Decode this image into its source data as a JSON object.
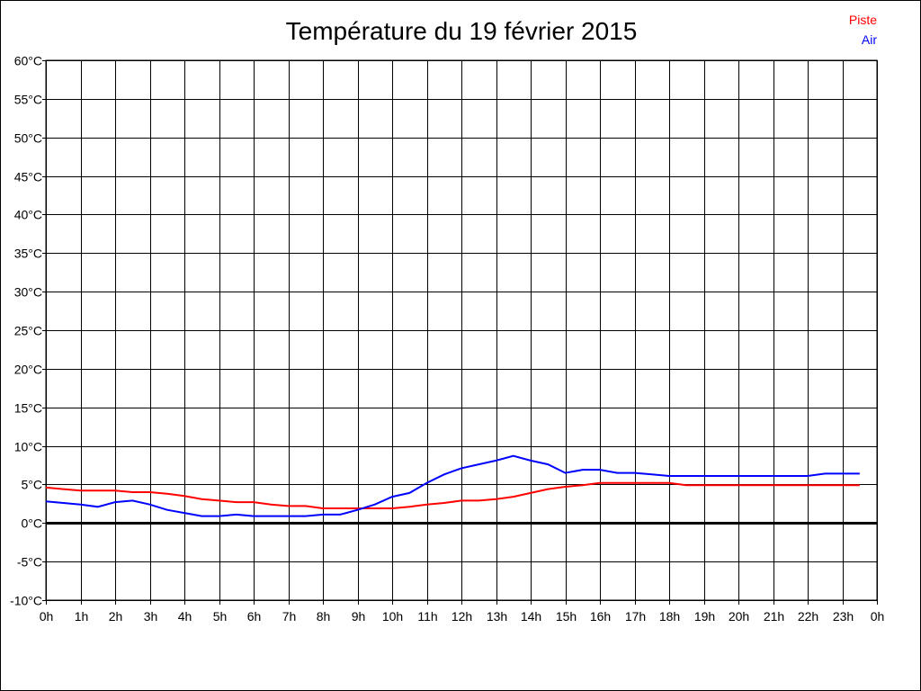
{
  "chart_data": {
    "type": "line",
    "title": "Température du 19 février 2015",
    "xlabel": "",
    "ylabel": "",
    "xlim": [
      0,
      24
    ],
    "ylim": [
      -10,
      60
    ],
    "grid": true,
    "legend_position": "top-right",
    "x_tick_labels": [
      "0h",
      "1h",
      "2h",
      "3h",
      "4h",
      "5h",
      "6h",
      "7h",
      "8h",
      "9h",
      "10h",
      "11h",
      "12h",
      "13h",
      "14h",
      "15h",
      "16h",
      "17h",
      "18h",
      "19h",
      "20h",
      "21h",
      "22h",
      "23h",
      "0h"
    ],
    "y_ticks": [
      -10,
      -5,
      0,
      5,
      10,
      15,
      20,
      25,
      30,
      35,
      40,
      45,
      50,
      55,
      60
    ],
    "y_tick_labels": [
      "-10°C",
      "-5°C",
      "0°C",
      "5°C",
      "10°C",
      "15°C",
      "20°C",
      "25°C",
      "30°C",
      "35°C",
      "40°C",
      "45°C",
      "50°C",
      "55°C",
      "60°C"
    ],
    "x": [
      0,
      0.5,
      1,
      1.5,
      2,
      2.5,
      3,
      3.5,
      4,
      4.5,
      5,
      5.5,
      6,
      6.5,
      7,
      7.5,
      8,
      8.5,
      9,
      9.5,
      10,
      10.5,
      11,
      11.5,
      12,
      12.5,
      13,
      13.5,
      14,
      14.5,
      15,
      15.5,
      16,
      16.5,
      17,
      17.5,
      18,
      18.5,
      19,
      19.5,
      20,
      20.5,
      21,
      21.5,
      22,
      22.5,
      23,
      23.5
    ],
    "series": [
      {
        "name": "Piste",
        "color": "#ff0000",
        "values": [
          4.6,
          4.4,
          4.2,
          4.2,
          4.2,
          4.0,
          4.0,
          3.8,
          3.5,
          3.1,
          2.9,
          2.7,
          2.7,
          2.4,
          2.2,
          2.2,
          1.9,
          1.9,
          1.9,
          1.9,
          1.9,
          2.1,
          2.4,
          2.6,
          2.9,
          2.9,
          3.1,
          3.4,
          3.9,
          4.4,
          4.7,
          4.9,
          5.2,
          5.2,
          5.2,
          5.2,
          5.2,
          4.9,
          4.9,
          4.9,
          4.9,
          4.9,
          4.9,
          4.9,
          4.9,
          4.9,
          4.9,
          4.9
        ]
      },
      {
        "name": "Air",
        "color": "#0000ff",
        "values": [
          2.8,
          2.6,
          2.4,
          2.1,
          2.7,
          2.9,
          2.4,
          1.7,
          1.3,
          0.9,
          0.9,
          1.1,
          0.9,
          0.9,
          0.9,
          0.9,
          1.1,
          1.1,
          1.7,
          2.4,
          3.4,
          3.9,
          5.2,
          6.3,
          7.1,
          7.6,
          8.1,
          8.7,
          8.1,
          7.6,
          6.5,
          6.9,
          6.9,
          6.5,
          6.5,
          6.3,
          6.1,
          6.1,
          6.1,
          6.1,
          6.1,
          6.1,
          6.1,
          6.1,
          6.1,
          6.4,
          6.4,
          6.4
        ]
      }
    ]
  }
}
